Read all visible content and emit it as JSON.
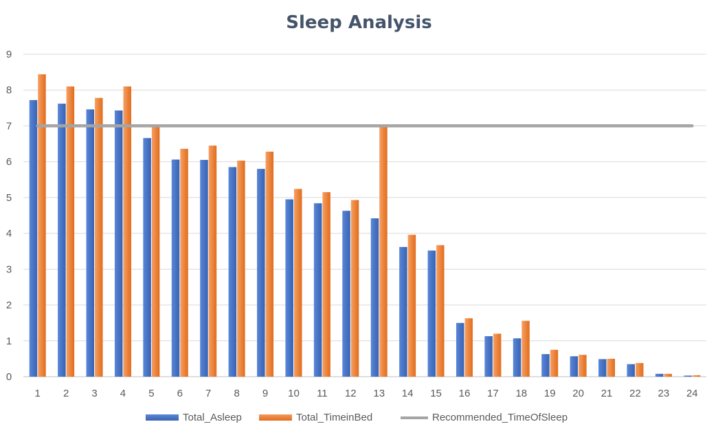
{
  "chart_data": {
    "type": "bar",
    "title": "Sleep Analysis",
    "categories": [
      "1",
      "2",
      "3",
      "4",
      "5",
      "6",
      "7",
      "8",
      "9",
      "10",
      "11",
      "12",
      "13",
      "14",
      "15",
      "16",
      "17",
      "18",
      "19",
      "20",
      "21",
      "22",
      "23",
      "24"
    ],
    "series": [
      {
        "name": "Total_Asleep",
        "kind": "bar",
        "color": "#4472c4",
        "values": [
          7.72,
          7.62,
          7.46,
          7.43,
          6.66,
          6.06,
          6.05,
          5.85,
          5.8,
          4.95,
          4.84,
          4.63,
          4.42,
          3.62,
          3.52,
          1.5,
          1.13,
          1.07,
          0.63,
          0.57,
          0.49,
          0.35,
          0.08,
          0.03
        ]
      },
      {
        "name": "Total_TimeinBed",
        "kind": "bar",
        "color": "#ed7d31",
        "values": [
          8.44,
          8.1,
          7.78,
          8.1,
          6.98,
          6.36,
          6.45,
          6.03,
          6.28,
          5.24,
          5.15,
          4.93,
          6.98,
          3.96,
          3.67,
          1.63,
          1.2,
          1.56,
          0.75,
          0.61,
          0.5,
          0.38,
          0.08,
          0.04
        ]
      },
      {
        "name": "Recommended_TimeOfSleep",
        "kind": "line",
        "color": "#a5a5a5",
        "values": [
          7,
          7,
          7,
          7,
          7,
          7,
          7,
          7,
          7,
          7,
          7,
          7,
          7,
          7,
          7,
          7,
          7,
          7,
          7,
          7,
          7,
          7,
          7,
          7
        ]
      }
    ],
    "ylim": [
      0,
      9
    ],
    "yticks": [
      "0",
      "1",
      "2",
      "3",
      "4",
      "5",
      "6",
      "7",
      "8",
      "9"
    ],
    "grid": true,
    "legend": "bottom"
  }
}
